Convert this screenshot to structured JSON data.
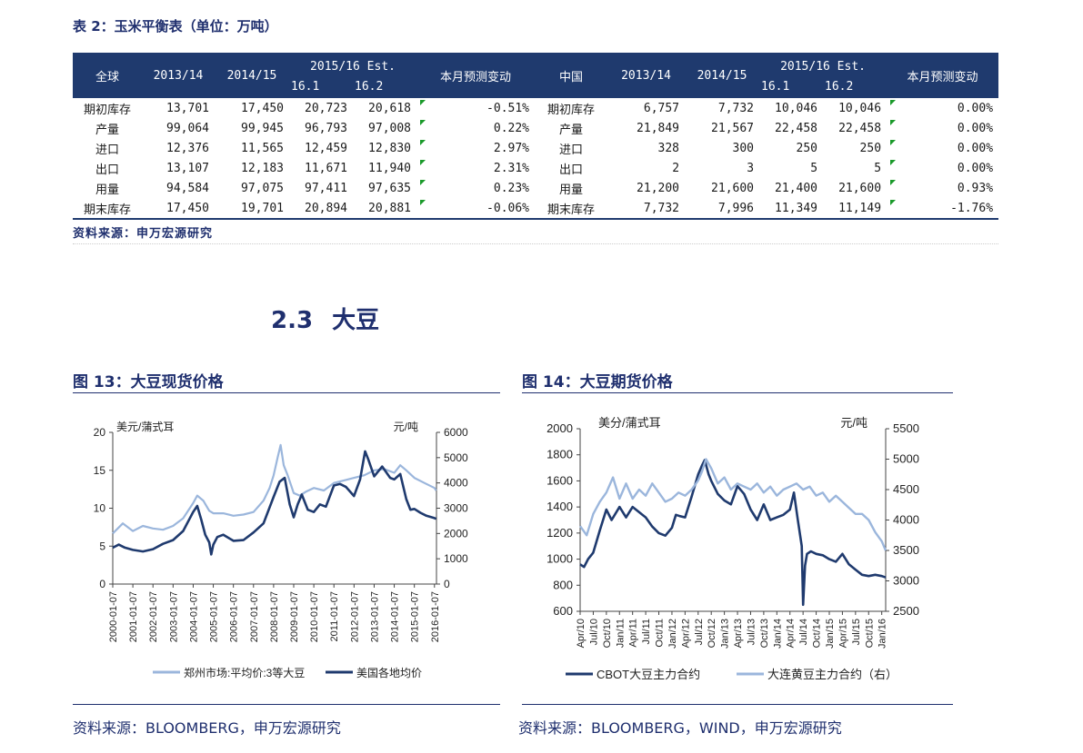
{
  "table": {
    "title": "表 2：玉米平衡表（单位：万吨）",
    "headers": {
      "global": "全球",
      "y1": "2013/14",
      "y2": "2014/15",
      "est": "2015/16 Est.",
      "est_a": "16.1",
      "est_b": "16.2",
      "change": "本月预测变动",
      "china": "中国",
      "y3": "2013/14",
      "y4": "2014/15",
      "est2": "2015/16 Est.",
      "est2_a": "16.1",
      "est2_b": "16.2",
      "change2": "本月预测变动"
    },
    "rows": [
      {
        "g_label": "期初库存",
        "g1": "13,701",
        "g2": "17,450",
        "g3": "20,723",
        "g4": "20,618",
        "g_chg": "-0.51%",
        "c_label": "期初库存",
        "c1": "6,757",
        "c2": "7,732",
        "c3": "10,046",
        "c4": "10,046",
        "c_chg": "0.00%"
      },
      {
        "g_label": "产量",
        "g1": "99,064",
        "g2": "99,945",
        "g3": "96,793",
        "g4": "97,008",
        "g_chg": "0.22%",
        "c_label": "产量",
        "c1": "21,849",
        "c2": "21,567",
        "c3": "22,458",
        "c4": "22,458",
        "c_chg": "0.00%"
      },
      {
        "g_label": "进口",
        "g1": "12,376",
        "g2": "11,565",
        "g3": "12,459",
        "g4": "12,830",
        "g_chg": "2.97%",
        "c_label": "进口",
        "c1": "328",
        "c2": "300",
        "c3": "250",
        "c4": "250",
        "c_chg": "0.00%"
      },
      {
        "g_label": "出口",
        "g1": "13,107",
        "g2": "12,183",
        "g3": "11,671",
        "g4": "11,940",
        "g_chg": "2.31%",
        "c_label": "出口",
        "c1": "2",
        "c2": "3",
        "c3": "5",
        "c4": "5",
        "c_chg": "0.00%"
      },
      {
        "g_label": "用量",
        "g1": "94,584",
        "g2": "97,075",
        "g3": "97,411",
        "g4": "97,635",
        "g_chg": "0.23%",
        "c_label": "用量",
        "c1": "21,200",
        "c2": "21,600",
        "c3": "21,400",
        "c4": "21,600",
        "c_chg": "0.93%"
      },
      {
        "g_label": "期末库存",
        "g1": "17,450",
        "g2": "19,701",
        "g3": "20,894",
        "g4": "20,881",
        "g_chg": "-0.06%",
        "c_label": "期末库存",
        "c1": "7,732",
        "c2": "7,996",
        "c3": "11,349",
        "c4": "11,149",
        "c_chg": "-1.76%"
      }
    ],
    "source": "资料来源：申万宏源研究"
  },
  "section": {
    "number": "2.3",
    "title": "大豆"
  },
  "figures": {
    "fig13_title": "图 13：大豆现货价格",
    "fig14_title": "图 14：大豆期货价格",
    "fig13_source": "资料来源：BLOOMBERG，申万宏源研究",
    "fig14_source": "资料来源：BLOOMBERG，WIND，申万宏源研究"
  },
  "colors": {
    "navy": "#1f3a6e",
    "light_blue": "#9bb6dc",
    "header_bg": "#1f3a6e",
    "marker_green": "#1a9a2a"
  },
  "chart_data": [
    {
      "type": "line",
      "left_unit": "美元/蒲式耳",
      "right_unit": "元/吨",
      "left_ylim": [
        0,
        20
      ],
      "left_ticks": [
        "0",
        "5",
        "10",
        "15",
        "20"
      ],
      "right_ylim": [
        0,
        6000
      ],
      "right_ticks": [
        "0",
        "1000",
        "2000",
        "3000",
        "4000",
        "5000",
        "6000"
      ],
      "x_ticks": [
        "2000-01-07",
        "2001-01-07",
        "2002-01-07",
        "2003-01-07",
        "2004-01-07",
        "2005-01-07",
        "2006-01-07",
        "2007-01-07",
        "2008-01-07",
        "2009-01-07",
        "2010-01-07",
        "2011-01-07",
        "2012-01-07",
        "2013-01-07",
        "2014-01-07",
        "2015-01-07",
        "2016-01-07"
      ],
      "x_range": [
        2000.0,
        2016.1
      ],
      "series": [
        {
          "name": "郑州市场:平均价:3等大豆",
          "axis": "right",
          "color": "#9bb6dc",
          "x": [
            2000.0,
            2000.5,
            2001.0,
            2001.5,
            2002.0,
            2002.5,
            2003.0,
            2003.5,
            2004.0,
            2004.2,
            2004.5,
            2004.8,
            2005.0,
            2005.5,
            2006.0,
            2006.5,
            2007.0,
            2007.5,
            2007.8,
            2008.0,
            2008.2,
            2008.35,
            2008.5,
            2008.7,
            2009.0,
            2009.3,
            2009.6,
            2010.0,
            2010.5,
            2011.0,
            2011.5,
            2012.0,
            2012.5,
            2013.0,
            2013.5,
            2014.0,
            2014.3,
            2014.6,
            2015.0,
            2015.5,
            2016.0,
            2016.08
          ],
          "y": [
            2000,
            2400,
            2100,
            2300,
            2200,
            2150,
            2300,
            2600,
            3200,
            3500,
            3300,
            2900,
            2800,
            2800,
            2700,
            2750,
            2850,
            3300,
            3800,
            4300,
            5000,
            5500,
            4700,
            4300,
            3600,
            3500,
            3650,
            3800,
            3700,
            4000,
            4100,
            4200,
            4300,
            4500,
            4550,
            4400,
            4700,
            4500,
            4200,
            4000,
            3800,
            3700
          ]
        },
        {
          "name": "美国各地均价",
          "axis": "left",
          "color": "#1f3a6e",
          "x": [
            2000.0,
            2000.3,
            2000.6,
            2001.0,
            2001.5,
            2002.0,
            2002.5,
            2003.0,
            2003.5,
            2004.0,
            2004.2,
            2004.4,
            2004.6,
            2004.8,
            2004.9,
            2005.0,
            2005.2,
            2005.5,
            2006.0,
            2006.5,
            2007.0,
            2007.5,
            2008.0,
            2008.3,
            2008.55,
            2008.8,
            2009.0,
            2009.2,
            2009.4,
            2009.7,
            2010.0,
            2010.3,
            2010.6,
            2011.0,
            2011.3,
            2011.6,
            2012.0,
            2012.3,
            2012.55,
            2012.7,
            2013.0,
            2013.4,
            2013.8,
            2014.0,
            2014.3,
            2014.6,
            2014.8,
            2015.0,
            2015.3,
            2015.6,
            2016.0,
            2016.08
          ],
          "y": [
            4.8,
            5.2,
            4.8,
            4.5,
            4.3,
            4.6,
            5.3,
            5.8,
            7.0,
            9.5,
            10.3,
            8.5,
            6.5,
            5.5,
            3.9,
            5.2,
            6.2,
            6.5,
            5.7,
            5.8,
            6.8,
            8.0,
            11.5,
            13.5,
            14.0,
            10.5,
            8.8,
            10.5,
            11.8,
            9.8,
            9.5,
            10.5,
            10.2,
            13.0,
            13.2,
            12.8,
            11.6,
            13.8,
            17.5,
            16.5,
            14.2,
            15.5,
            14.0,
            13.8,
            14.5,
            11.2,
            9.8,
            9.9,
            9.4,
            9.0,
            8.7,
            8.6
          ]
        }
      ]
    },
    {
      "type": "line",
      "left_unit": "美分/蒲式耳",
      "right_unit": "元/吨",
      "left_ylim": [
        600,
        2000
      ],
      "left_ticks": [
        "600",
        "800",
        "1000",
        "1200",
        "1400",
        "1600",
        "1800",
        "2000"
      ],
      "right_ylim": [
        2500,
        5500
      ],
      "right_ticks": [
        "2500",
        "3000",
        "3500",
        "4000",
        "4500",
        "5000",
        "5500"
      ],
      "x_ticks": [
        "Apr/10",
        "Jul/10",
        "Oct/10",
        "Jan/11",
        "Apr/11",
        "Jul/11",
        "Oct/11",
        "Jan/12",
        "Apr/12",
        "Jul/12",
        "Oct/12",
        "Jan/13",
        "Apr/13",
        "Jul/13",
        "Oct/13",
        "Jan/14",
        "Apr/14",
        "Jul/14",
        "Oct/14",
        "Jan/15",
        "Apr/15",
        "Jul/15",
        "Oct/15",
        "Jan/16"
      ],
      "x_range": [
        0,
        23.3
      ],
      "series": [
        {
          "name": "CBOT大豆主力合约",
          "axis": "left",
          "color": "#1f3a6e",
          "x": [
            0,
            0.3,
            0.6,
            1,
            1.5,
            2,
            2.4,
            3,
            3.5,
            4,
            4.5,
            5,
            5.5,
            6,
            6.5,
            7,
            7.3,
            7.6,
            8,
            8.5,
            9,
            9.3,
            9.5,
            9.8,
            10,
            10.5,
            11,
            11.5,
            12,
            12.5,
            13,
            13.5,
            14,
            14.5,
            15,
            15.5,
            16,
            16.3,
            16.6,
            16.9,
            17.0,
            17.15,
            17.3,
            17.6,
            18,
            18.5,
            19,
            19.5,
            20,
            20.5,
            21,
            21.5,
            22,
            22.5,
            23,
            23.3
          ],
          "y": [
            960,
            940,
            1000,
            1050,
            1220,
            1380,
            1300,
            1400,
            1320,
            1400,
            1360,
            1320,
            1250,
            1200,
            1180,
            1240,
            1340,
            1330,
            1320,
            1480,
            1650,
            1720,
            1760,
            1650,
            1600,
            1500,
            1450,
            1420,
            1560,
            1500,
            1380,
            1300,
            1420,
            1300,
            1320,
            1340,
            1380,
            1510,
            1300,
            1100,
            650,
            950,
            1040,
            1060,
            1040,
            1030,
            1000,
            980,
            1040,
            960,
            920,
            880,
            870,
            880,
            870,
            860
          ]
        },
        {
          "name": "大连黄豆主力合约（右）",
          "axis": "right",
          "color": "#9bb6dc",
          "x": [
            0,
            0.5,
            1,
            1.5,
            2,
            2.5,
            3,
            3.5,
            4,
            4.5,
            5,
            5.5,
            6,
            6.5,
            7,
            7.5,
            8,
            8.5,
            9,
            9.3,
            9.6,
            10,
            10.5,
            11,
            11.5,
            12,
            12.5,
            13,
            13.5,
            14,
            14.5,
            15,
            15.5,
            16,
            16.5,
            17,
            17.5,
            18,
            18.5,
            19,
            19.5,
            20,
            20.5,
            21,
            21.5,
            22,
            22.5,
            23,
            23.3
          ],
          "y": [
            3900,
            3750,
            4100,
            4300,
            4450,
            4700,
            4350,
            4600,
            4350,
            4500,
            4400,
            4600,
            4450,
            4300,
            4350,
            4450,
            4400,
            4500,
            4650,
            4800,
            5000,
            4850,
            4600,
            4700,
            4500,
            4600,
            4550,
            4500,
            4600,
            4450,
            4550,
            4400,
            4500,
            4550,
            4600,
            4500,
            4550,
            4400,
            4450,
            4300,
            4400,
            4300,
            4200,
            4100,
            4100,
            4000,
            3800,
            3650,
            3500
          ]
        }
      ]
    }
  ]
}
